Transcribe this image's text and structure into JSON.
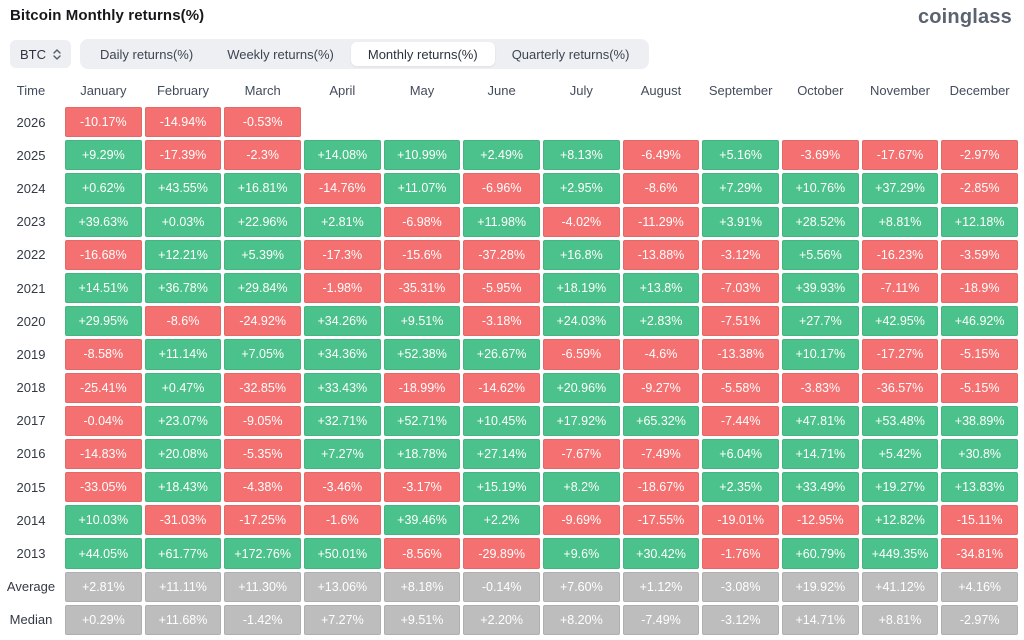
{
  "header": {
    "title": "Bitcoin Monthly returns(%)",
    "logo": "coinglass"
  },
  "controls": {
    "coin_selector": {
      "value": "BTC"
    },
    "tabs": [
      {
        "label": "Daily returns(%)",
        "active": false
      },
      {
        "label": "Weekly returns(%)",
        "active": false
      },
      {
        "label": "Monthly returns(%)",
        "active": true
      },
      {
        "label": "Quarterly returns(%)",
        "active": false
      }
    ]
  },
  "colors": {
    "positive": "#4bc28b",
    "negative": "#f57070",
    "neutral": "#bdbdbd"
  },
  "chart_data": {
    "type": "heatmap",
    "title": "Bitcoin Monthly returns(%)",
    "columns": [
      "Time",
      "January",
      "February",
      "March",
      "April",
      "May",
      "June",
      "July",
      "August",
      "September",
      "October",
      "November",
      "December"
    ],
    "rows": [
      {
        "label": "2026",
        "style": "signed",
        "values": [
          "-10.17%",
          "-14.94%",
          "-0.53%",
          "",
          "",
          "",
          "",
          "",
          "",
          "",
          "",
          ""
        ]
      },
      {
        "label": "2025",
        "style": "signed",
        "values": [
          "+9.29%",
          "-17.39%",
          "-2.3%",
          "+14.08%",
          "+10.99%",
          "+2.49%",
          "+8.13%",
          "-6.49%",
          "+5.16%",
          "-3.69%",
          "-17.67%",
          "-2.97%"
        ]
      },
      {
        "label": "2024",
        "style": "signed",
        "values": [
          "+0.62%",
          "+43.55%",
          "+16.81%",
          "-14.76%",
          "+11.07%",
          "-6.96%",
          "+2.95%",
          "-8.6%",
          "+7.29%",
          "+10.76%",
          "+37.29%",
          "-2.85%"
        ]
      },
      {
        "label": "2023",
        "style": "signed",
        "values": [
          "+39.63%",
          "+0.03%",
          "+22.96%",
          "+2.81%",
          "-6.98%",
          "+11.98%",
          "-4.02%",
          "-11.29%",
          "+3.91%",
          "+28.52%",
          "+8.81%",
          "+12.18%"
        ]
      },
      {
        "label": "2022",
        "style": "signed",
        "values": [
          "-16.68%",
          "+12.21%",
          "+5.39%",
          "-17.3%",
          "-15.6%",
          "-37.28%",
          "+16.8%",
          "-13.88%",
          "-3.12%",
          "+5.56%",
          "-16.23%",
          "-3.59%"
        ]
      },
      {
        "label": "2021",
        "style": "signed",
        "values": [
          "+14.51%",
          "+36.78%",
          "+29.84%",
          "-1.98%",
          "-35.31%",
          "-5.95%",
          "+18.19%",
          "+13.8%",
          "-7.03%",
          "+39.93%",
          "-7.11%",
          "-18.9%"
        ]
      },
      {
        "label": "2020",
        "style": "signed",
        "values": [
          "+29.95%",
          "-8.6%",
          "-24.92%",
          "+34.26%",
          "+9.51%",
          "-3.18%",
          "+24.03%",
          "+2.83%",
          "-7.51%",
          "+27.7%",
          "+42.95%",
          "+46.92%"
        ]
      },
      {
        "label": "2019",
        "style": "signed",
        "values": [
          "-8.58%",
          "+11.14%",
          "+7.05%",
          "+34.36%",
          "+52.38%",
          "+26.67%",
          "-6.59%",
          "-4.6%",
          "-13.38%",
          "+10.17%",
          "-17.27%",
          "-5.15%"
        ]
      },
      {
        "label": "2018",
        "style": "signed",
        "values": [
          "-25.41%",
          "+0.47%",
          "-32.85%",
          "+33.43%",
          "-18.99%",
          "-14.62%",
          "+20.96%",
          "-9.27%",
          "-5.58%",
          "-3.83%",
          "-36.57%",
          "-5.15%"
        ]
      },
      {
        "label": "2017",
        "style": "signed",
        "values": [
          "-0.04%",
          "+23.07%",
          "-9.05%",
          "+32.71%",
          "+52.71%",
          "+10.45%",
          "+17.92%",
          "+65.32%",
          "-7.44%",
          "+47.81%",
          "+53.48%",
          "+38.89%"
        ]
      },
      {
        "label": "2016",
        "style": "signed",
        "values": [
          "-14.83%",
          "+20.08%",
          "-5.35%",
          "+7.27%",
          "+18.78%",
          "+27.14%",
          "-7.67%",
          "-7.49%",
          "+6.04%",
          "+14.71%",
          "+5.42%",
          "+30.8%"
        ]
      },
      {
        "label": "2015",
        "style": "signed",
        "values": [
          "-33.05%",
          "+18.43%",
          "-4.38%",
          "-3.46%",
          "-3.17%",
          "+15.19%",
          "+8.2%",
          "-18.67%",
          "+2.35%",
          "+33.49%",
          "+19.27%",
          "+13.83%"
        ]
      },
      {
        "label": "2014",
        "style": "signed",
        "values": [
          "+10.03%",
          "-31.03%",
          "-17.25%",
          "-1.6%",
          "+39.46%",
          "+2.2%",
          "-9.69%",
          "-17.55%",
          "-19.01%",
          "-12.95%",
          "+12.82%",
          "-15.11%"
        ]
      },
      {
        "label": "2013",
        "style": "signed",
        "values": [
          "+44.05%",
          "+61.77%",
          "+172.76%",
          "+50.01%",
          "-8.56%",
          "-29.89%",
          "+9.6%",
          "+30.42%",
          "-1.76%",
          "+60.79%",
          "+449.35%",
          "-34.81%"
        ]
      },
      {
        "label": "Average",
        "style": "neutral",
        "values": [
          "+2.81%",
          "+11.11%",
          "+11.30%",
          "+13.06%",
          "+8.18%",
          "-0.14%",
          "+7.60%",
          "+1.12%",
          "-3.08%",
          "+19.92%",
          "+41.12%",
          "+4.16%"
        ]
      },
      {
        "label": "Median",
        "style": "neutral",
        "values": [
          "+0.29%",
          "+11.68%",
          "-1.42%",
          "+7.27%",
          "+9.51%",
          "+2.20%",
          "+8.20%",
          "-7.49%",
          "-3.12%",
          "+14.71%",
          "+8.81%",
          "-2.97%"
        ]
      }
    ]
  }
}
